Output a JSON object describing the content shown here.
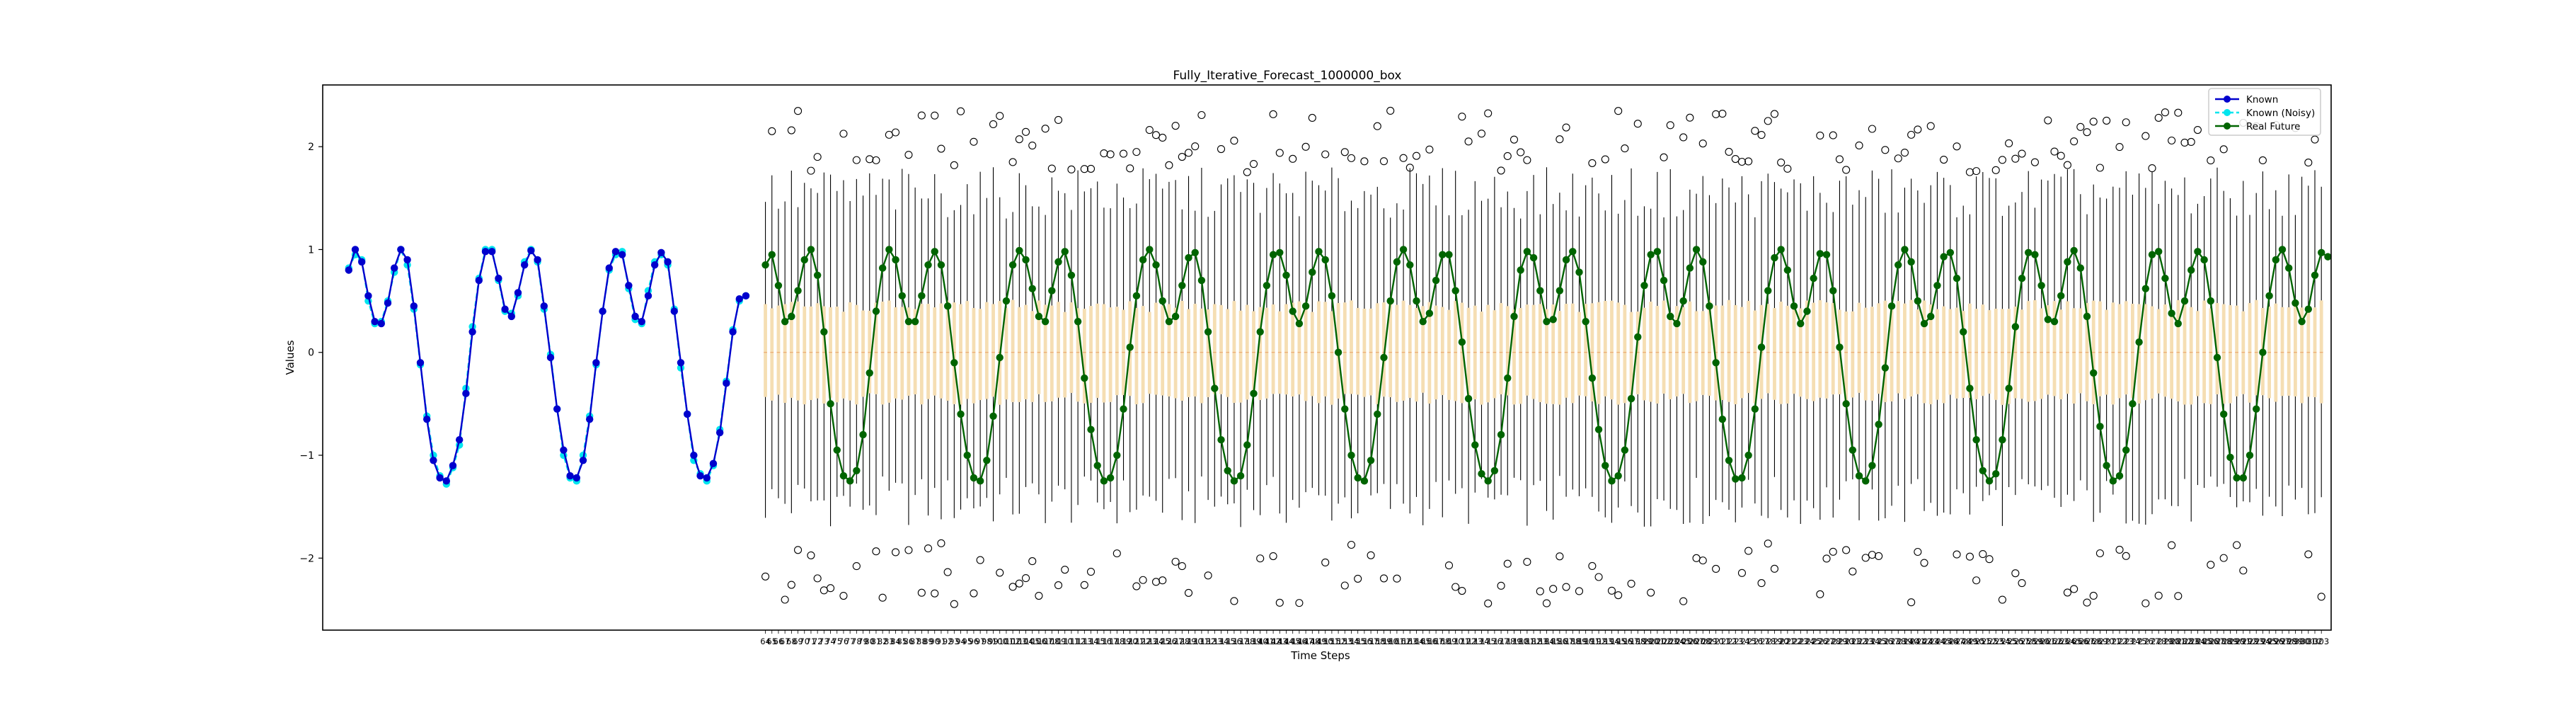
{
  "chart_data": {
    "type": "line",
    "title": "Fully_Iterative_Forecast_1000000_box",
    "xlabel": "Time Steps",
    "ylabel": "Values",
    "ylim": [
      -2.7,
      2.6
    ],
    "yticks": [
      -2,
      -1,
      0,
      1,
      2
    ],
    "grid": false,
    "legend_position": "top-right",
    "colors": {
      "known": "#0000cd",
      "known_noisy": "#00e5ee",
      "real_future": "#006400",
      "box_fill": "#f5deb3",
      "box_edge": "#000000"
    },
    "known_x_start": 0,
    "future_x_start": 64,
    "future_x_end": 303,
    "x_tick_labels_note": "overlapping",
    "series": [
      {
        "name": "Known",
        "values": [
          0.8,
          1.0,
          0.88,
          0.55,
          0.3,
          0.28,
          0.48,
          0.82,
          1.0,
          0.9,
          0.45,
          -0.1,
          -0.65,
          -1.05,
          -1.22,
          -1.25,
          -1.1,
          -0.85,
          -0.4,
          0.2,
          0.7,
          0.98,
          0.98,
          0.72,
          0.42,
          0.35,
          0.58,
          0.85,
          0.99,
          0.9,
          0.45,
          -0.05,
          -0.55,
          -0.95,
          -1.2,
          -1.22,
          -1.05,
          -0.65,
          -0.1,
          0.4,
          0.82,
          0.98,
          0.95,
          0.65,
          0.35,
          0.3,
          0.55,
          0.85,
          0.97,
          0.88,
          0.4,
          -0.1,
          -0.6,
          -1.0,
          -1.2,
          -1.22,
          -1.08,
          -0.78,
          -0.3,
          0.2,
          0.52,
          0.55
        ]
      },
      {
        "name": "Known (Noisy)",
        "values": [
          0.82,
          0.95,
          0.9,
          0.5,
          0.28,
          0.3,
          0.5,
          0.78,
          1.0,
          0.85,
          0.42,
          -0.12,
          -0.62,
          -1.0,
          -1.2,
          -1.28,
          -1.12,
          -0.9,
          -0.35,
          0.25,
          0.72,
          1.0,
          1.0,
          0.7,
          0.4,
          0.38,
          0.55,
          0.88,
          1.0,
          0.88,
          0.42,
          -0.02,
          -0.55,
          -1.0,
          -1.22,
          -1.25,
          -1.0,
          -0.62,
          -0.12,
          0.4,
          0.8,
          0.95,
          0.98,
          0.62,
          0.32,
          0.28,
          0.6,
          0.88,
          0.95,
          0.85,
          0.42,
          -0.15,
          -0.6,
          -1.05,
          -1.18,
          -1.25,
          -1.1,
          -0.75,
          -0.28,
          0.22,
          0.5,
          0.55
        ]
      },
      {
        "name": "Real Future",
        "values": [
          0.85,
          0.95,
          0.65,
          0.3,
          0.35,
          0.6,
          0.9,
          1.0,
          0.75,
          0.2,
          -0.5,
          -0.95,
          -1.2,
          -1.25,
          -1.15,
          -0.8,
          -0.2,
          0.4,
          0.82,
          1.0,
          0.9,
          0.55,
          0.3,
          0.3,
          0.55,
          0.85,
          0.98,
          0.85,
          0.45,
          -0.1,
          -0.6,
          -1.0,
          -1.22,
          -1.25,
          -1.05,
          -0.62,
          -0.05,
          0.5,
          0.85,
          0.99,
          0.9,
          0.62,
          0.35,
          0.3,
          0.6,
          0.88,
          0.98,
          0.75,
          0.3,
          -0.25,
          -0.75,
          -1.1,
          -1.25,
          -1.22,
          -1.0,
          -0.55,
          0.05,
          0.55,
          0.9,
          1.0,
          0.85,
          0.5,
          0.3,
          0.35,
          0.65,
          0.92,
          0.97,
          0.7,
          0.2,
          -0.35,
          -0.85,
          -1.15,
          -1.25,
          -1.2,
          -0.9,
          -0.4,
          0.2,
          0.65,
          0.95,
          0.97,
          0.75,
          0.4,
          0.28,
          0.45,
          0.78,
          0.98,
          0.9,
          0.55,
          0.0,
          -0.55,
          -1.0,
          -1.22,
          -1.25,
          -1.05,
          -0.6,
          -0.05,
          0.5,
          0.88,
          1.0,
          0.85,
          0.5,
          0.3,
          0.38,
          0.7,
          0.95,
          0.95,
          0.6,
          0.1,
          -0.45,
          -0.9,
          -1.18,
          -1.25,
          -1.15,
          -0.8,
          -0.25,
          0.35,
          0.8,
          0.98,
          0.92,
          0.6,
          0.3,
          0.32,
          0.6,
          0.9,
          0.98,
          0.78,
          0.3,
          -0.25,
          -0.75,
          -1.1,
          -1.25,
          -1.2,
          -0.95,
          -0.45,
          0.15,
          0.65,
          0.95,
          0.98,
          0.7,
          0.35,
          0.28,
          0.5,
          0.82,
          1.0,
          0.88,
          0.45,
          -0.1,
          -0.65,
          -1.05,
          -1.23,
          -1.22,
          -1.0,
          -0.55,
          0.05,
          0.6,
          0.92,
          1.0,
          0.8,
          0.45,
          0.28,
          0.4,
          0.72,
          0.96,
          0.95,
          0.6,
          0.05,
          -0.5,
          -0.95,
          -1.2,
          -1.25,
          -1.1,
          -0.7,
          -0.15,
          0.45,
          0.85,
          1.0,
          0.88,
          0.5,
          0.28,
          0.35,
          0.65,
          0.93,
          0.97,
          0.72,
          0.2,
          -0.35,
          -0.85,
          -1.15,
          -1.25,
          -1.18,
          -0.85,
          -0.35,
          0.25,
          0.72,
          0.97,
          0.95,
          0.65,
          0.32,
          0.3,
          0.55,
          0.88,
          0.99,
          0.82,
          0.35,
          -0.2,
          -0.72,
          -1.1,
          -1.25,
          -1.2,
          -0.95,
          -0.5,
          0.1,
          0.62,
          0.95,
          0.98,
          0.72,
          0.38,
          0.28,
          0.5,
          0.8,
          0.98,
          0.9,
          0.5,
          -0.05,
          -0.6,
          -1.02,
          -1.22,
          -1.22,
          -1.0,
          -0.55,
          0.0,
          0.55,
          0.9,
          1.0,
          0.82,
          0.48,
          0.3,
          0.42,
          0.75,
          0.97,
          0.93
        ],
        "x_start": 64
      }
    ],
    "box": {
      "whisker_typical": [
        -1.45,
        1.55
      ],
      "quartiles_typical": [
        -0.45,
        0.45
      ],
      "median_typical": 0.0,
      "outlier_range": [
        -2.45,
        2.35
      ]
    },
    "legend": [
      "Known",
      "Known (Noisy)",
      "Real Future"
    ]
  }
}
